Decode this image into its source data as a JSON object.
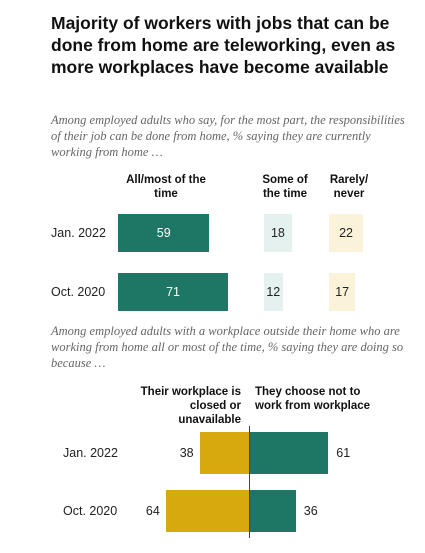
{
  "title": "Majority of workers with jobs that can be done from home are teleworking, even as more workplaces have become available",
  "chart_data": [
    {
      "type": "bar",
      "subtitle": "Among employed adults who say, for the most part, the responsibilities of their job can be done from home, % saying they are currently working from home …",
      "columns": [
        "All/most of the time",
        "Some of the time",
        "Rarely/ never"
      ],
      "categories": [
        "Jan. 2022",
        "Oct. 2020"
      ],
      "series": [
        {
          "name": "All/most of the time",
          "values": [
            59,
            71
          ],
          "color": "#1e7665"
        },
        {
          "name": "Some of the time",
          "values": [
            18,
            12
          ],
          "color": "#e4f1ef"
        },
        {
          "name": "Rarely/ never",
          "values": [
            22,
            17
          ],
          "color": "#fbf2da"
        }
      ]
    },
    {
      "type": "bar",
      "subtitle": "Among employed adults with a workplace outside their home who are working from home all or most of the time, % saying they are doing so because …",
      "columns": [
        "Their workplace is closed or unavailable",
        "They choose not to work from workplace"
      ],
      "categories": [
        "Jan. 2022",
        "Oct. 2020"
      ],
      "series": [
        {
          "name": "Their workplace is closed or unavailable",
          "values": [
            38,
            64
          ],
          "color": "#d8a90e"
        },
        {
          "name": "They choose not to work from workplace",
          "values": [
            61,
            36
          ],
          "color": "#1e7665"
        }
      ]
    }
  ]
}
